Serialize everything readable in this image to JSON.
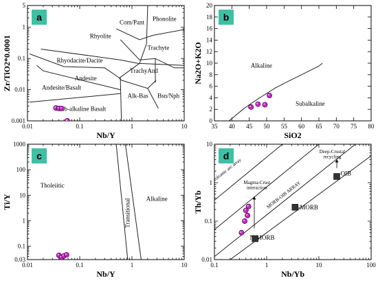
{
  "colors": {
    "panel_tag": "#3fbfa3",
    "sample_point": "#c427c4",
    "reference_marker": "#333333"
  },
  "chart_data": [
    {
      "id": "a",
      "type": "scatter",
      "panel_tag": "a",
      "xlabel": "Nb/Y",
      "ylabel": "Zr/TiO2*0.0001",
      "xscale": "log",
      "yscale": "log",
      "xlim": [
        0.01,
        10
      ],
      "ylim": [
        0.001,
        5
      ],
      "xticks": [
        {
          "v": 0.01,
          "t": "0.01"
        },
        {
          "v": 0.1,
          "t": "0.1"
        },
        {
          "v": 1,
          "t": "1"
        },
        {
          "v": 10,
          "t": "10"
        }
      ],
      "yticks": [
        {
          "v": 0.001,
          "t": "0.001"
        },
        {
          "v": 0.01,
          "t": "0.01"
        },
        {
          "v": 0.1,
          "t": "0.1"
        },
        {
          "v": 1,
          "t": "1"
        },
        {
          "v": 5,
          "t": "5"
        }
      ],
      "fields": [
        {
          "t": "Com/Pant",
          "x": 1.0,
          "y": 1.25
        },
        {
          "t": "Phonolite",
          "x": 4.2,
          "y": 1.6
        },
        {
          "t": "Rhyolite",
          "x": 0.25,
          "y": 0.45
        },
        {
          "t": "Trachyte",
          "x": 3.2,
          "y": 0.19
        },
        {
          "t": "Rhyodacite/Dacite",
          "x": 0.1,
          "y": 0.075
        },
        {
          "t": "TrachyAnd",
          "x": 1.7,
          "y": 0.035
        },
        {
          "t": "Andesite",
          "x": 0.13,
          "y": 0.02
        },
        {
          "t": "Andesite/Basalt",
          "x": 0.045,
          "y": 0.01
        },
        {
          "t": "Alk-Bas",
          "x": 1.3,
          "y": 0.0055
        },
        {
          "t": "Bsn/Nph",
          "x": 5.0,
          "y": 0.0055
        },
        {
          "t": "Sub-alkaline Basalt",
          "x": 0.11,
          "y": 0.0021
        }
      ],
      "boundaries": [
        [
          [
            2.0,
            5
          ],
          [
            1.9,
            0.3
          ],
          [
            1.4,
            0.07
          ],
          [
            0.58,
            0.024
          ]
        ],
        [
          [
            0.5,
            0.9
          ],
          [
            1.4,
            0.4
          ],
          [
            2.5,
            0.55
          ],
          [
            10,
            0.85
          ]
        ],
        [
          [
            0.6,
            0.4
          ],
          [
            1.4,
            0.09
          ],
          [
            2.8,
            0.1
          ],
          [
            6.5,
            0.05
          ],
          [
            10,
            0.05
          ]
        ],
        [
          [
            0.018,
            0.2
          ],
          [
            0.6,
            0.09
          ],
          [
            1.3,
            0.07
          ],
          [
            10,
            0.06
          ]
        ],
        [
          [
            0.011,
            0.14
          ],
          [
            0.05,
            0.055
          ],
          [
            0.3,
            0.05
          ],
          [
            0.55,
            0.025
          ],
          [
            0.63,
            0.02
          ]
        ],
        [
          [
            0.015,
            0.06
          ],
          [
            0.02,
            0.04
          ],
          [
            0.6,
            0.01
          ]
        ],
        [
          [
            0.6,
            0.024
          ],
          [
            0.63,
            0.001
          ]
        ],
        [
          [
            0.63,
            0.02
          ],
          [
            2.0,
            0.011
          ],
          [
            2.9,
            0.02
          ]
        ],
        [
          [
            2.0,
            0.011
          ],
          [
            3.2,
            0.0025
          ]
        ],
        [
          [
            2.8,
            0.1
          ],
          [
            2.8,
            0.017
          ]
        ],
        [
          [
            0.011,
            0.004
          ],
          [
            0.6,
            0.0075
          ]
        ]
      ],
      "series": [
        {
          "kind": "circle",
          "points": [
            {
              "x": 0.035,
              "y": 0.0026
            },
            {
              "x": 0.04,
              "y": 0.0025
            },
            {
              "x": 0.045,
              "y": 0.0025
            },
            {
              "x": 0.058,
              "y": 0.001
            }
          ]
        }
      ],
      "annotations": []
    },
    {
      "id": "b",
      "type": "scatter",
      "panel_tag": "b",
      "xlabel": "SiO2",
      "ylabel": "Na2O+K2O",
      "xscale": "linear",
      "yscale": "linear",
      "xlim": [
        35,
        80
      ],
      "ylim": [
        0,
        20
      ],
      "xticks": [
        {
          "v": 35,
          "t": "35"
        },
        {
          "v": 40,
          "t": "40"
        },
        {
          "v": 45,
          "t": "45"
        },
        {
          "v": 50,
          "t": "50"
        },
        {
          "v": 55,
          "t": "55"
        },
        {
          "v": 60,
          "t": "60"
        },
        {
          "v": 65,
          "t": "65"
        },
        {
          "v": 70,
          "t": "70"
        },
        {
          "v": 75,
          "t": "75"
        },
        {
          "v": 80,
          "t": "80"
        }
      ],
      "yticks": [
        {
          "v": 0,
          "t": "0"
        },
        {
          "v": 2,
          "t": "2"
        },
        {
          "v": 4,
          "t": "4"
        },
        {
          "v": 6,
          "t": "6"
        },
        {
          "v": 8,
          "t": "8"
        },
        {
          "v": 10,
          "t": "10"
        },
        {
          "v": 12,
          "t": "12"
        },
        {
          "v": 14,
          "t": "14"
        },
        {
          "v": 16,
          "t": "16"
        },
        {
          "v": 18,
          "t": "18"
        },
        {
          "v": 20,
          "t": "20"
        }
      ],
      "fields": [
        {
          "t": "Alkaline",
          "x": 48.5,
          "y": 9.2
        },
        {
          "t": "Subalkaline",
          "x": 62.5,
          "y": 2.6
        }
      ],
      "boundaries": [
        [
          [
            39.2,
            0
          ],
          [
            40,
            0.4
          ],
          [
            43.2,
            2.0
          ],
          [
            45,
            2.8
          ],
          [
            48,
            4.0
          ],
          [
            50,
            4.75
          ],
          [
            52.5,
            5.7
          ],
          [
            55,
            6.5
          ],
          [
            60,
            8.0
          ],
          [
            65,
            9.5
          ],
          [
            66,
            10
          ]
        ]
      ],
      "series": [
        {
          "kind": "circle",
          "points": [
            {
              "x": 45.5,
              "y": 2.4
            },
            {
              "x": 47.5,
              "y": 2.9
            },
            {
              "x": 49.5,
              "y": 2.8
            },
            {
              "x": 50.8,
              "y": 4.4
            }
          ]
        }
      ],
      "annotations": []
    },
    {
      "id": "c",
      "type": "scatter",
      "panel_tag": "c",
      "xlabel": "Nb/Y",
      "ylabel": "Ti/Y",
      "xscale": "log",
      "yscale": "log",
      "xlim": [
        0.01,
        10
      ],
      "ylim": [
        0.03,
        1000
      ],
      "xticks": [
        {
          "v": 0.01,
          "t": "0.01"
        },
        {
          "v": 0.1,
          "t": "0.1"
        },
        {
          "v": 1,
          "t": "1"
        },
        {
          "v": 10,
          "t": "10"
        }
      ],
      "yticks": [
        {
          "v": 0.03,
          "t": "0.03"
        },
        {
          "v": 0.1,
          "t": "0.1"
        },
        {
          "v": 1,
          "t": "1"
        },
        {
          "v": 10,
          "t": "10"
        },
        {
          "v": 100,
          "t": "100"
        },
        {
          "v": 1000,
          "t": "1000"
        }
      ],
      "fields": [
        {
          "t": "Tholeiitic",
          "x": 0.03,
          "y": 20
        },
        {
          "t": "Alkaline",
          "x": 3.0,
          "y": 6
        }
      ],
      "vertical_labels": [
        {
          "t": "Transitional",
          "x": 0.9,
          "y": 2.0
        }
      ],
      "boundaries": [
        [
          [
            0.5,
            1000
          ],
          [
            0.83,
            0.03
          ]
        ],
        [
          [
            0.75,
            1000
          ],
          [
            1.5,
            0.03
          ]
        ]
      ],
      "series": [
        {
          "kind": "circle",
          "points": [
            {
              "x": 0.04,
              "y": 0.044
            },
            {
              "x": 0.045,
              "y": 0.037
            },
            {
              "x": 0.05,
              "y": 0.042
            },
            {
              "x": 0.056,
              "y": 0.046
            }
          ]
        }
      ],
      "annotations": []
    },
    {
      "id": "d",
      "type": "scatter",
      "panel_tag": "d",
      "xlabel": "Nb/Yb",
      "ylabel": "Th/Yb",
      "xscale": "log",
      "yscale": "log",
      "xlim": [
        0.1,
        100
      ],
      "ylim": [
        0.01,
        10
      ],
      "xticks": [
        {
          "v": 0.1,
          "t": "0.1"
        },
        {
          "v": 1,
          "t": "1"
        },
        {
          "v": 10,
          "t": "10"
        },
        {
          "v": 100,
          "t": "100"
        }
      ],
      "yticks": [
        {
          "v": 0.01,
          "t": "0.01"
        },
        {
          "v": 0.1,
          "t": "0.1"
        },
        {
          "v": 1,
          "t": "1"
        },
        {
          "v": 10,
          "t": "10"
        }
      ],
      "fields": [
        {
          "t": "OIB",
          "x": 33,
          "y": 1.55
        },
        {
          "t": "E-MORB",
          "x": 5.7,
          "y": 0.2
        },
        {
          "t": "N-MORB",
          "x": 0.82,
          "y": 0.033
        }
      ],
      "rotated_labels": [
        {
          "t": "Volcanic arc array",
          "x": 0.18,
          "y": 2.0,
          "angle": -38
        },
        {
          "t": "MORB-OIB ARRAY",
          "x": 2.2,
          "y": 0.45,
          "angle": -38
        }
      ],
      "boundaries": [
        [
          [
            0.1,
            0.35
          ],
          [
            2.0,
            10
          ]
        ],
        [
          [
            0.1,
            0.06
          ],
          [
            10,
            10
          ]
        ],
        [
          [
            0.1,
            0.012
          ],
          [
            50,
            10
          ]
        ],
        [
          [
            0.2,
            0.01
          ],
          [
            100,
            5
          ]
        ]
      ],
      "series": [
        {
          "kind": "circle",
          "points": [
            {
              "x": 0.33,
              "y": 0.05
            },
            {
              "x": 0.38,
              "y": 0.1
            },
            {
              "x": 0.43,
              "y": 0.14
            },
            {
              "x": 0.45,
              "y": 0.24
            },
            {
              "x": 0.4,
              "y": 0.19
            }
          ]
        },
        {
          "kind": "square",
          "points": [
            {
              "x": 0.6,
              "y": 0.035
            },
            {
              "x": 3.5,
              "y": 0.23
            },
            {
              "x": 22,
              "y": 1.45
            }
          ]
        }
      ],
      "annotations": [
        {
          "t": "Magma-Crust",
          "x": 0.65,
          "y": 0.92
        },
        {
          "t": "interaction",
          "x": 0.65,
          "y": 0.68
        },
        {
          "t": "Deep-Crustal",
          "x": 18,
          "y": 5.8
        },
        {
          "t": "recycling",
          "x": 18,
          "y": 4.3
        }
      ],
      "arrows": [
        {
          "from": {
            "x": 0.58,
            "y": 0.065
          },
          "to": {
            "x": 0.58,
            "y": 0.4
          }
        },
        {
          "from": {
            "x": 22,
            "y": 2.4
          },
          "to": {
            "x": 22,
            "y": 3.7
          }
        }
      ]
    }
  ]
}
